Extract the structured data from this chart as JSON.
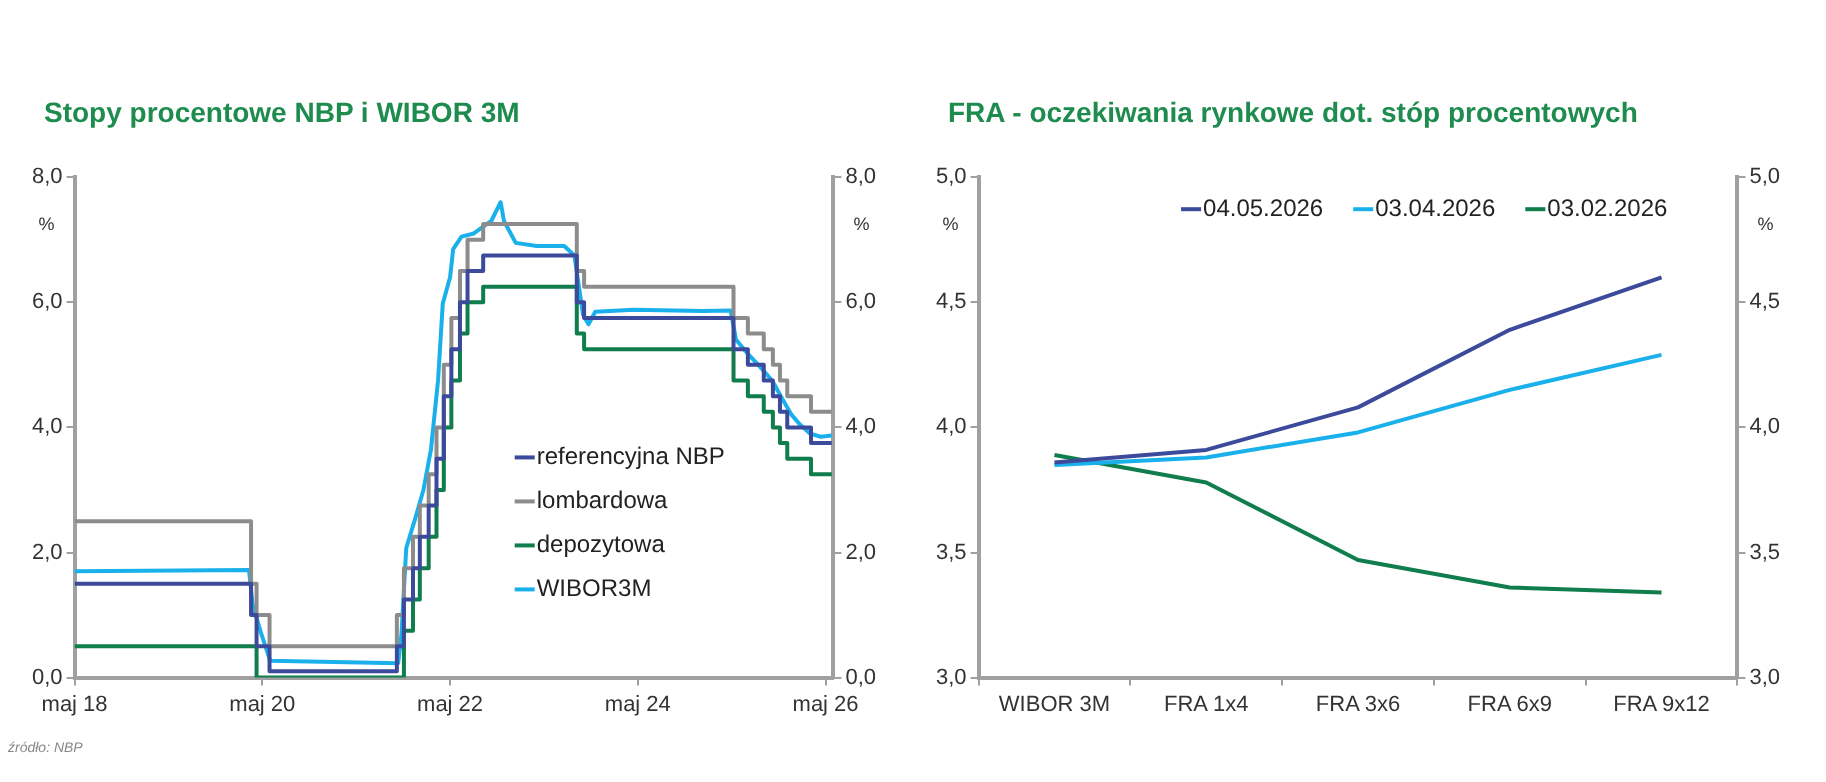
{
  "chart_data": [
    {
      "type": "step",
      "title": "Stopy procentowe NBP i WIBOR 3M",
      "ylabel": "%",
      "y2label": "%",
      "marker": "none",
      "legend": "right",
      "xlim": [
        "2018-05-01",
        "2026-06-01"
      ],
      "xticks": [
        {
          "value": "2018-05",
          "label": "maj 18"
        },
        {
          "value": "2020-05",
          "label": "maj 20"
        },
        {
          "value": "2022-05",
          "label": "maj 22"
        },
        {
          "value": "2024-05",
          "label": "maj 24"
        },
        {
          "value": "2026-05",
          "label": "maj 26"
        }
      ],
      "ylim": [
        0,
        8
      ],
      "yticks": [
        {
          "value": 0,
          "label": "0,0"
        },
        {
          "value": 2,
          "label": "2,0"
        },
        {
          "value": 4,
          "label": "4,0"
        },
        {
          "value": 6,
          "label": "6,0"
        },
        {
          "value": 8,
          "label": "8,0"
        }
      ],
      "y2lim": [
        0,
        8
      ],
      "y2ticks": [
        {
          "value": 0,
          "label": "0,0"
        },
        {
          "value": 2,
          "label": "2,0"
        },
        {
          "value": 4,
          "label": "4,0"
        },
        {
          "value": 6,
          "label": "6,0"
        },
        {
          "value": 8,
          "label": "8,0"
        }
      ],
      "annotations": [
        "źródło: NBP"
      ],
      "series": [
        {
          "name": "referencyjna NBP",
          "color": "#3c4a9c",
          "x": [
            "2018-05-01",
            "2020-03-18",
            "2020-04-09",
            "2020-05-29",
            "2021-10-07",
            "2021-11-04",
            "2021-12-09",
            "2022-01-05",
            "2022-02-09",
            "2022-03-09",
            "2022-04-07",
            "2022-05-06",
            "2022-06-09",
            "2022-07-08",
            "2022-09-08",
            "2023-09-07",
            "2023-10-05",
            "2025-05-08",
            "2025-07-03",
            "2025-09-04",
            "2025-10-09",
            "2025-11-06",
            "2025-12-04",
            "2026-03-05",
            "2026-05-25"
          ],
          "values": [
            1.5,
            1.0,
            0.5,
            0.1,
            0.5,
            1.25,
            1.75,
            2.25,
            2.75,
            3.5,
            4.5,
            5.25,
            6.0,
            6.5,
            6.75,
            6.0,
            5.75,
            5.25,
            5.0,
            4.75,
            4.5,
            4.25,
            4.0,
            3.75,
            3.75
          ]
        },
        {
          "name": "lombardowa",
          "color": "#8c8c8c",
          "x": [
            "2018-05-01",
            "2020-03-18",
            "2020-04-09",
            "2020-05-29",
            "2021-10-07",
            "2021-11-04",
            "2021-12-09",
            "2022-01-05",
            "2022-02-09",
            "2022-03-09",
            "2022-04-07",
            "2022-05-06",
            "2022-06-09",
            "2022-07-08",
            "2022-09-08",
            "2023-09-07",
            "2023-10-05",
            "2025-05-08",
            "2025-07-03",
            "2025-09-04",
            "2025-10-09",
            "2025-11-06",
            "2025-12-04",
            "2026-03-05",
            "2026-05-25"
          ],
          "values": [
            2.5,
            1.5,
            1.0,
            0.5,
            1.0,
            1.75,
            2.25,
            2.75,
            3.25,
            4.0,
            5.0,
            5.75,
            6.5,
            7.0,
            7.25,
            6.5,
            6.25,
            5.75,
            5.5,
            5.25,
            5.0,
            4.75,
            4.5,
            4.25,
            4.25
          ]
        },
        {
          "name": "depozytowa",
          "color": "#0f7d4c",
          "x": [
            "2018-05-01",
            "2020-04-09",
            "2021-11-04",
            "2021-12-09",
            "2022-01-05",
            "2022-02-09",
            "2022-03-09",
            "2022-04-07",
            "2022-05-06",
            "2022-06-09",
            "2022-07-08",
            "2022-09-08",
            "2023-09-07",
            "2023-10-05",
            "2025-05-08",
            "2025-07-03",
            "2025-09-04",
            "2025-10-09",
            "2025-11-06",
            "2025-12-04",
            "2026-03-05",
            "2026-05-25"
          ],
          "values": [
            0.5,
            0.0,
            0.75,
            1.25,
            1.75,
            2.25,
            3.0,
            4.0,
            4.75,
            5.5,
            6.0,
            6.25,
            5.5,
            5.25,
            4.75,
            4.5,
            4.25,
            4.0,
            3.75,
            3.5,
            3.25,
            3.25
          ]
        },
        {
          "name": "WIBOR3M",
          "type": "line",
          "color": "#1ab0ec",
          "x": [
            "2018-05-01",
            "2020-03-10",
            "2020-03-24",
            "2020-04-28",
            "2020-06-01",
            "2021-10-12",
            "2021-10-25",
            "2021-11-13",
            "2021-12-18",
            "2022-01-19",
            "2022-02-18",
            "2022-03-15",
            "2022-04-03",
            "2022-05-01",
            "2022-05-13",
            "2022-06-15",
            "2022-08-02",
            "2022-10-09",
            "2022-11-15",
            "2022-11-28",
            "2023-01-13",
            "2023-04-03",
            "2023-07-19",
            "2023-08-28",
            "2023-09-17",
            "2023-10-01",
            "2023-10-22",
            "2023-11-18",
            "2024-04-15",
            "2025-01-10",
            "2025-04-27",
            "2025-05-18",
            "2025-06-28",
            "2025-08-13",
            "2025-10-06",
            "2025-11-16",
            "2025-12-21",
            "2026-01-22",
            "2026-03-02",
            "2026-04-12",
            "2026-05-25"
          ],
          "values": [
            1.7,
            1.72,
            1.17,
            0.69,
            0.27,
            0.23,
            0.7,
            2.07,
            2.55,
            3.0,
            3.65,
            4.75,
            5.98,
            6.4,
            6.85,
            7.05,
            7.1,
            7.3,
            7.6,
            7.3,
            6.95,
            6.9,
            6.9,
            6.75,
            6.2,
            5.8,
            5.65,
            5.85,
            5.88,
            5.86,
            5.87,
            5.4,
            5.2,
            5.0,
            4.75,
            4.45,
            4.2,
            4.05,
            3.9,
            3.85,
            3.87
          ]
        }
      ]
    },
    {
      "type": "line",
      "title": "FRA - oczekiwania rynkowe dot. stóp procentowych",
      "ylabel": "%",
      "y2label": "%",
      "marker": "none",
      "legend": "top right",
      "categories": [
        "WIBOR 3M",
        "FRA 1x4",
        "FRA 3x6",
        "FRA 6x9",
        "FRA 9x12"
      ],
      "ylim": [
        3,
        5
      ],
      "yticks": [
        {
          "value": 3,
          "label": "3,0"
        },
        {
          "value": 3.5,
          "label": "3,5"
        },
        {
          "value": 4,
          "label": "4,0"
        },
        {
          "value": 4.5,
          "label": "4,5"
        },
        {
          "value": 5,
          "label": "5,0"
        }
      ],
      "y2lim": [
        3,
        5
      ],
      "y2ticks": [
        {
          "value": 3,
          "label": "3,0"
        },
        {
          "value": 3.5,
          "label": "3,5"
        },
        {
          "value": 4,
          "label": "4,0"
        },
        {
          "value": 4.5,
          "label": "4,5"
        },
        {
          "value": 5,
          "label": "5,0"
        }
      ],
      "series": [
        {
          "name": "04.05.2026",
          "color": "#3c4a9c",
          "values": [
            3.86,
            3.91,
            4.08,
            4.39,
            4.6
          ]
        },
        {
          "name": "03.04.2026",
          "color": "#1ab0ec",
          "values": [
            3.85,
            3.88,
            3.98,
            4.15,
            4.29
          ]
        },
        {
          "name": "03.02.2026",
          "color": "#0f7d4c",
          "values": [
            3.89,
            3.78,
            3.47,
            3.36,
            3.34
          ]
        }
      ]
    }
  ]
}
